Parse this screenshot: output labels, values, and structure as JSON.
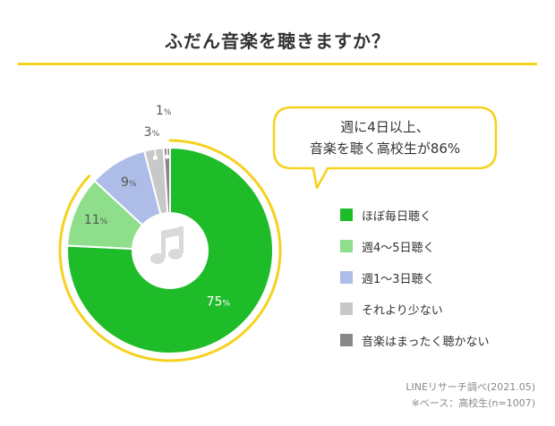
{
  "header": {
    "title": "ふだん音楽を聴きますか？"
  },
  "callout": {
    "line1": "週に4日以上、",
    "line2": "音楽を聴く高校生が86%"
  },
  "center_icon": "music-note-icon",
  "colors": {
    "accent_ring": "#f5d21e",
    "callout_border": "#f5d21e",
    "title_underline": "#f5d21e"
  },
  "chart_data": {
    "type": "pie",
    "categories": [
      "ほぼ毎日聴く",
      "週4～5日聴く",
      "週1～3日聴く",
      "それより少ない",
      "音楽はまったく聴かない"
    ],
    "values": [
      75,
      11,
      9,
      3,
      1
    ],
    "unit": "%",
    "colors": [
      "#1fbc2a",
      "#8fde8c",
      "#aebde8",
      "#c8c8c8",
      "#888888"
    ],
    "legend_placement": "right",
    "highlight": "ほぼ毎日聴く + 週4～5日聴く"
  },
  "source": {
    "line1": "LINEリサーチ調べ(2021.05)",
    "line2": "※ベース：高校生(n=1007)"
  }
}
